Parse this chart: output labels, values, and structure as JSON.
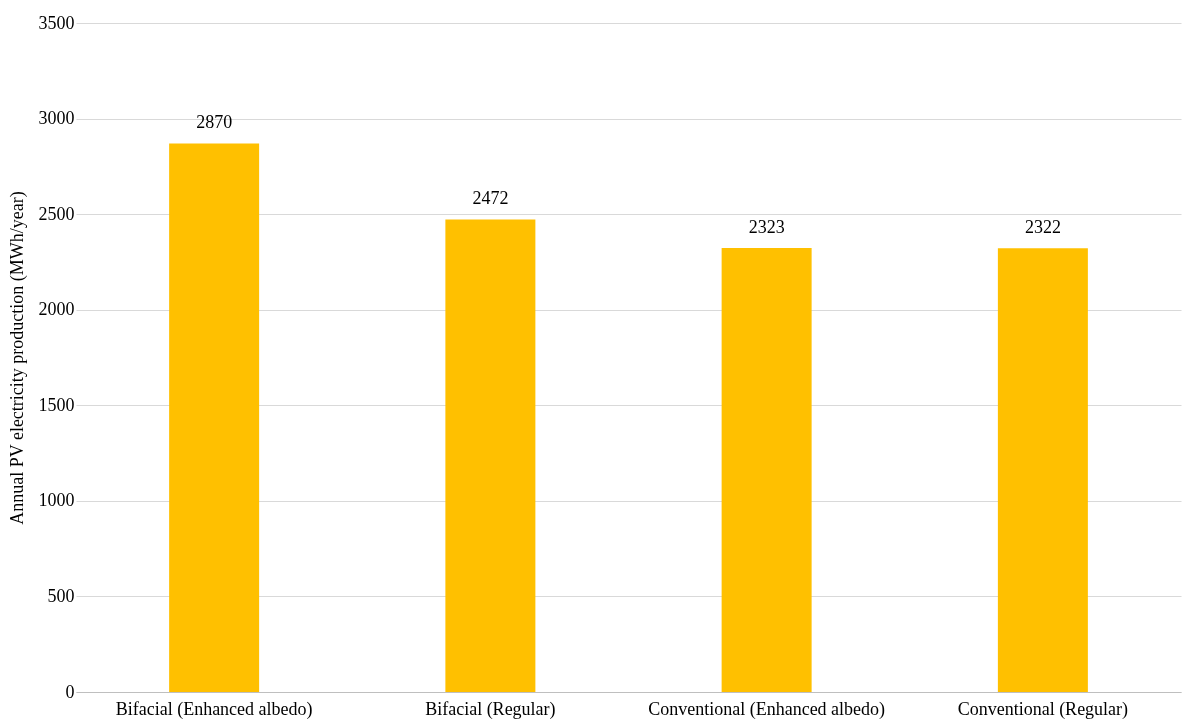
{
  "chart_data": {
    "type": "bar",
    "ylabel": "Annual PV electricity production (MWh/year)",
    "categories": [
      "Bifacial (Enhanced albedo)",
      "Bifacial (Regular)",
      "Conventional (Enhanced albedo)",
      "Conventional (Regular)"
    ],
    "values": [
      2870,
      2472,
      2323,
      2322
    ],
    "color": "#ffc000",
    "ylim": [
      0,
      3500
    ],
    "yticks": [
      0,
      500,
      1000,
      1500,
      2000,
      2500,
      3000,
      3500
    ],
    "grid": "y",
    "data_labels": true
  }
}
